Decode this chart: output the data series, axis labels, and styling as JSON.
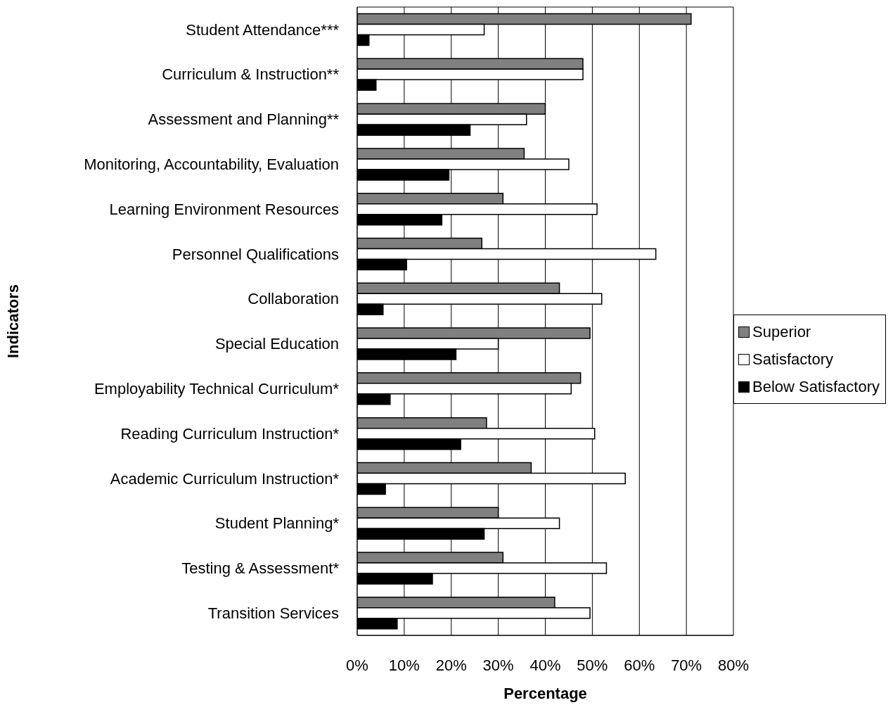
{
  "chart_data": {
    "type": "bar",
    "orientation": "horizontal",
    "xlabel": "Percentage",
    "ylabel": "Indicators",
    "categories": [
      "Student Attendance***",
      "Curriculum & Instruction**",
      "Assessment and Planning**",
      "Monitoring, Accountability, Evaluation",
      "Learning Environment Resources",
      "Personnel Qualifications",
      "Collaboration",
      "Special Education",
      "Employability Technical Curriculum*",
      "Reading Curriculum Instruction*",
      "Academic Curriculum Instruction*",
      "Student Planning*",
      "Testing & Assessment*",
      "Transition Services"
    ],
    "series": [
      {
        "name": "Superior",
        "color": "#808080",
        "values": [
          71,
          48,
          40,
          35.5,
          31,
          26.5,
          43,
          49.5,
          47.5,
          27.5,
          37,
          30,
          31,
          42
        ]
      },
      {
        "name": "Satisfactory",
        "color": "#ffffff",
        "values": [
          27,
          48,
          36,
          45,
          51,
          63.5,
          52,
          30,
          45.5,
          50.5,
          57,
          43,
          53,
          49.5
        ]
      },
      {
        "name": "Below Satisfactory",
        "color": "#000000",
        "values": [
          2.5,
          4,
          24,
          19.5,
          18,
          10.5,
          5.5,
          21,
          7,
          22,
          6,
          27,
          16,
          8.5
        ]
      }
    ],
    "xlim": [
      0,
      80
    ],
    "xticks": [
      {
        "value": 0,
        "label": "0%"
      },
      {
        "value": 10,
        "label": "10%"
      },
      {
        "value": 20,
        "label": "20%"
      },
      {
        "value": 30,
        "label": "30%"
      },
      {
        "value": 40,
        "label": "40%"
      },
      {
        "value": 50,
        "label": "50%"
      },
      {
        "value": 60,
        "label": "60%"
      },
      {
        "value": 70,
        "label": "70%"
      },
      {
        "value": 80,
        "label": "80%"
      }
    ],
    "grid": "x",
    "legend": "right"
  }
}
